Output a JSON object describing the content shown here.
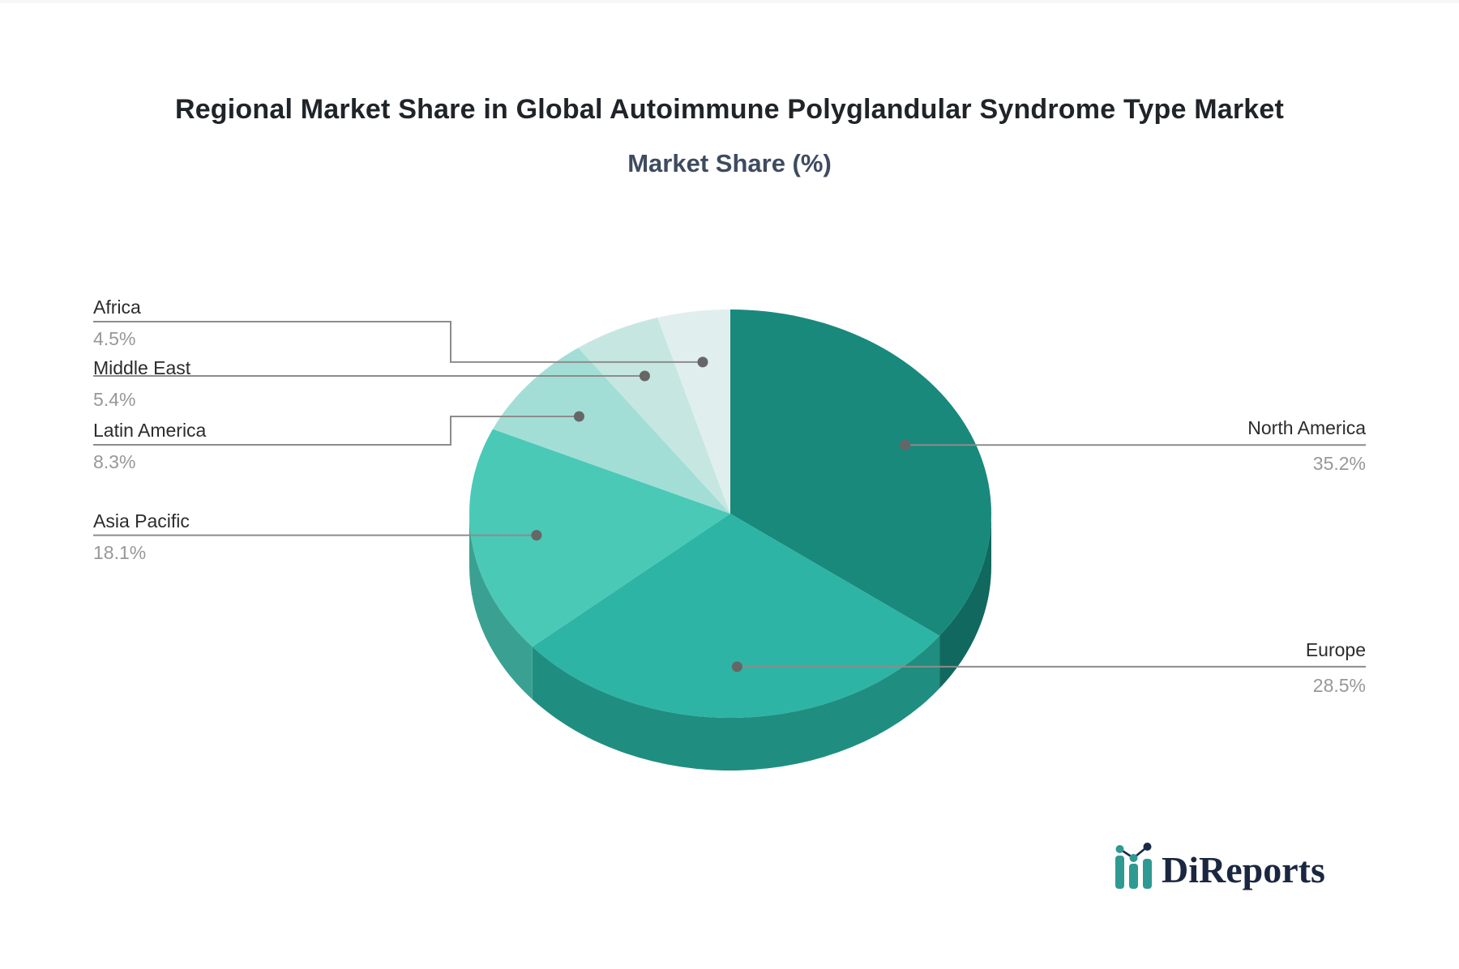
{
  "chart_data": {
    "type": "pie",
    "style": "3d",
    "title": "Regional Market Share in Global Autoimmune Polyglandular Syndrome Type Market",
    "subtitle": "Market Share (%)",
    "unit": "%",
    "labels": [
      "North America",
      "Europe",
      "Asia Pacific",
      "Latin America",
      "Middle East",
      "Africa"
    ],
    "values": [
      35.2,
      28.5,
      18.1,
      8.3,
      5.4,
      4.5
    ],
    "colors": [
      "#19897C",
      "#2DB4A4",
      "#4AC9B6",
      "#A3DED6",
      "#C6E7E1",
      "#E0EFED"
    ],
    "side_colors": [
      "#11685E",
      "#1F8E80",
      "#3AA092",
      "#7FBCB4",
      "#9CC5BF",
      "#B2CDC9"
    ],
    "start_angle_deg": -90,
    "direction": "clockwise",
    "legend": "none",
    "label_text_color": "#2c2c2c",
    "value_text_color": "#97989a",
    "leader_color": "#8c8c8c",
    "dot_color": "#666666",
    "background": "#ffffff"
  },
  "logo": {
    "text": "DiReports",
    "icon": "bar-chart-logo-icon",
    "icon_bar_color": "#2E9A92",
    "icon_accent_color": "#1B2A4A"
  }
}
